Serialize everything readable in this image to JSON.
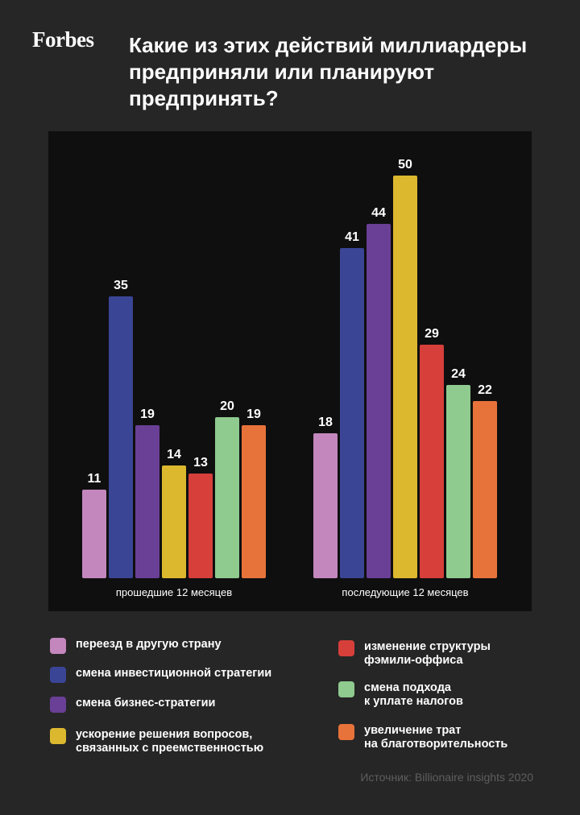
{
  "header": {
    "logo": "Forbes",
    "title": "Какие из этих действий миллиардеры предприняли или планируют предпринять?"
  },
  "colors": {
    "background": "#262626",
    "plot_background": "#0f0f0f"
  },
  "chart_data": {
    "type": "bar",
    "categories": [
      "прошедшие 12 месяцев",
      "последующие 12 месяцев"
    ],
    "series": [
      {
        "name": "переезд в другую страну",
        "values": [
          11,
          18
        ],
        "color": "#c387bd"
      },
      {
        "name": "смена инвестиционной стратегии",
        "values": [
          35,
          41
        ],
        "color": "#3a4596"
      },
      {
        "name": "смена бизнес-стратегии",
        "values": [
          19,
          44
        ],
        "color": "#6a3f96"
      },
      {
        "name": "ускорение решения вопросов,\nсвязанных с преемственностью",
        "values": [
          14,
          50
        ],
        "color": "#dcb82e"
      },
      {
        "name": "изменение структуры\nфэмили-оффиса",
        "values": [
          13,
          29
        ],
        "color": "#d63f3a"
      },
      {
        "name": "смена подхода\nк уплате налогов",
        "values": [
          20,
          24
        ],
        "color": "#8fca8f"
      },
      {
        "name": "увеличение трат\nна благотворительность",
        "values": [
          19,
          22
        ],
        "color": "#e8733a"
      }
    ],
    "ylim": [
      0,
      50
    ],
    "grid": false,
    "legend_position": "bottom"
  },
  "source": "Источник: Billionaire insights 2020"
}
